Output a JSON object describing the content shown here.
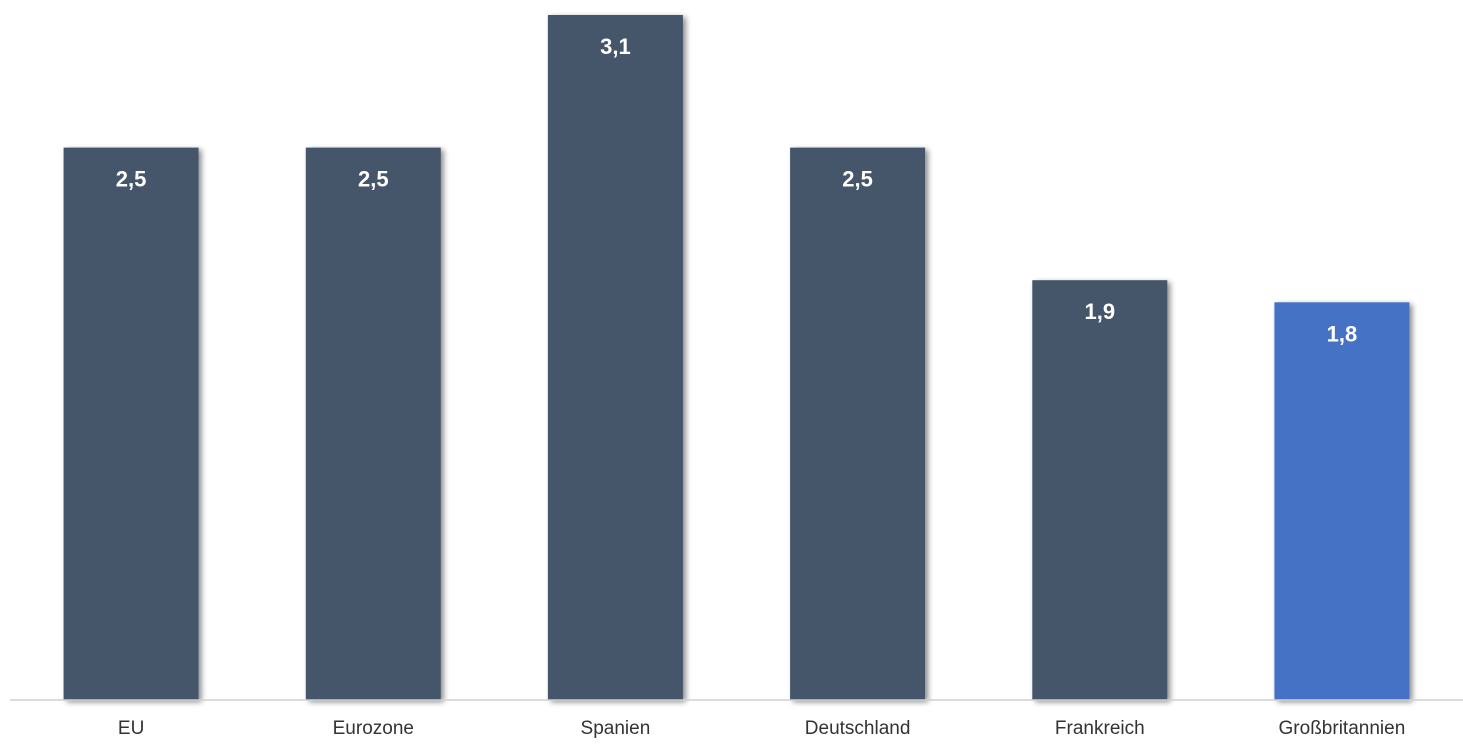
{
  "chart_data": {
    "type": "bar",
    "categories": [
      "EU",
      "Eurozone",
      "Spanien",
      "Deutschland",
      "Frankreich",
      "Großbritannien"
    ],
    "values": [
      2.5,
      2.5,
      3.1,
      2.5,
      1.9,
      1.8
    ],
    "value_labels": [
      "2,5",
      "2,5",
      "3,1",
      "2,5",
      "1,9",
      "1,8"
    ],
    "colors": [
      "#44546A",
      "#44546A",
      "#44546A",
      "#44546A",
      "#44546A",
      "#4472C4"
    ],
    "title": "",
    "xlabel": "",
    "ylabel": "",
    "ylim": [
      0,
      3.1
    ],
    "grid": false,
    "legend": "none"
  }
}
